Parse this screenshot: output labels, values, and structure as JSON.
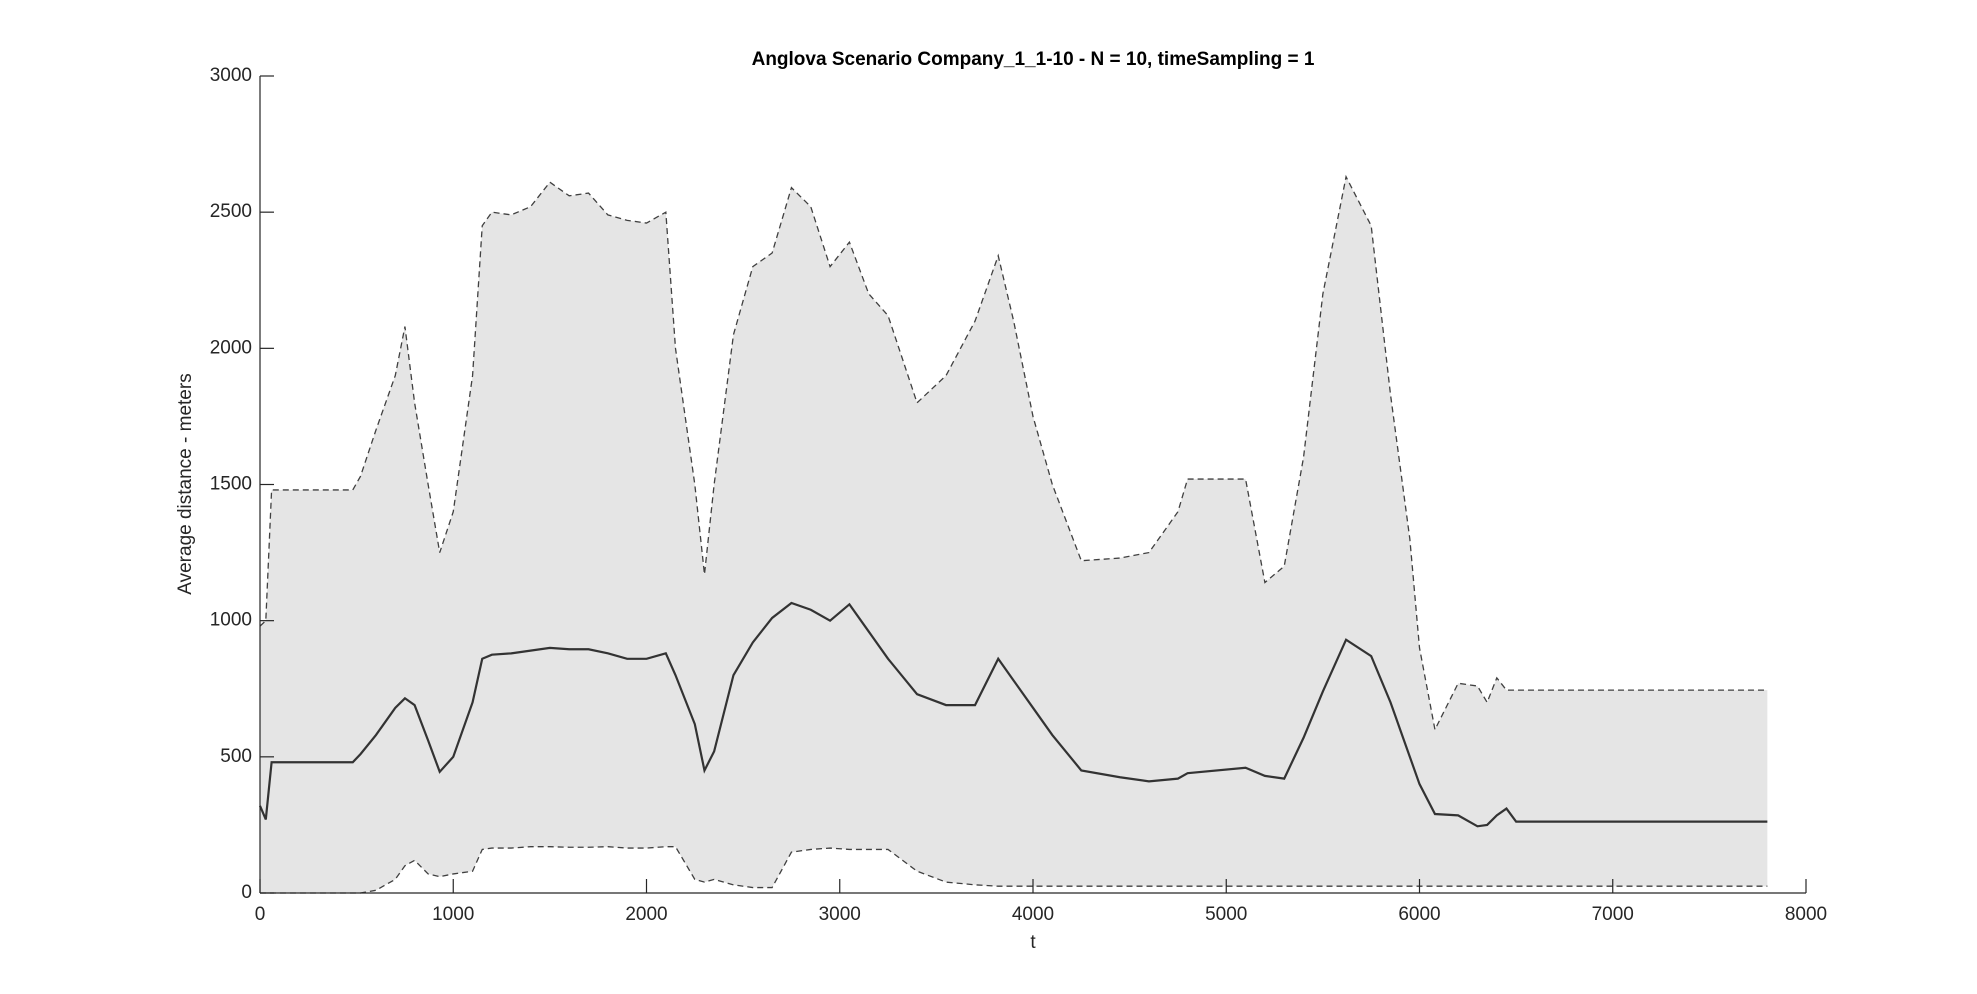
{
  "chart_data": {
    "type": "line",
    "title": "Anglova Scenario Company_1_1-10 - N = 10, timeSampling = 1",
    "x_label": "t",
    "y_label": "Average distance - meters",
    "x": [
      0,
      30,
      60,
      480,
      520,
      600,
      700,
      750,
      800,
      870,
      930,
      1000,
      1100,
      1150,
      1200,
      1300,
      1400,
      1500,
      1600,
      1700,
      1800,
      1900,
      2000,
      2100,
      2150,
      2250,
      2300,
      2350,
      2450,
      2550,
      2650,
      2750,
      2850,
      2950,
      3050,
      3150,
      3250,
      3400,
      3550,
      3700,
      3820,
      3900,
      4000,
      4100,
      4250,
      4450,
      4600,
      4750,
      4800,
      5100,
      5200,
      5300,
      5400,
      5500,
      5620,
      5750,
      5850,
      5950,
      6000,
      6080,
      6200,
      6300,
      6350,
      6400,
      6450,
      6500,
      7800
    ],
    "series": [
      {
        "color": "#404040",
        "dash": true,
        "values": [
          980,
          1000,
          1480,
          1480,
          1530,
          1700,
          1900,
          2080,
          1800,
          1500,
          1250,
          1400,
          1900,
          2450,
          2500,
          2490,
          2520,
          2610,
          2560,
          2570,
          2490,
          2470,
          2460,
          2500,
          2000,
          1500,
          1170,
          1500,
          2050,
          2300,
          2350,
          2590,
          2520,
          2300,
          2390,
          2200,
          2120,
          1800,
          1900,
          2100,
          2340,
          2100,
          1750,
          1500,
          1220,
          1230,
          1250,
          1400,
          1520,
          1520,
          1140,
          1200,
          1600,
          2200,
          2630,
          2450,
          1830,
          1300,
          900,
          600,
          770,
          760,
          700,
          790,
          745,
          745,
          745
        ]
      },
      {
        "color": "#333333",
        "dash": false,
        "values": [
          320,
          270,
          480,
          480,
          510,
          580,
          680,
          715,
          690,
          560,
          445,
          500,
          700,
          860,
          875,
          880,
          890,
          900,
          895,
          895,
          880,
          860,
          860,
          880,
          800,
          620,
          450,
          520,
          800,
          920,
          1010,
          1065,
          1040,
          1000,
          1060,
          960,
          860,
          730,
          690,
          690,
          860,
          780,
          680,
          580,
          450,
          425,
          410,
          420,
          440,
          460,
          430,
          420,
          570,
          740,
          930,
          870,
          700,
          500,
          400,
          290,
          285,
          245,
          250,
          285,
          310,
          262,
          262
        ]
      },
      {
        "color": "#404040",
        "dash": true,
        "values": [
          0,
          0,
          0,
          0,
          0,
          10,
          50,
          100,
          120,
          70,
          60,
          70,
          80,
          160,
          165,
          165,
          170,
          170,
          168,
          168,
          170,
          165,
          165,
          170,
          170,
          50,
          40,
          50,
          30,
          20,
          20,
          150,
          160,
          165,
          160,
          160,
          160,
          80,
          40,
          30,
          25,
          25,
          25,
          25,
          25,
          25,
          25,
          25,
          25,
          25,
          25,
          25,
          25,
          25,
          25,
          25,
          25,
          25,
          25,
          25,
          25,
          25,
          25,
          25,
          25,
          25,
          25
        ]
      }
    ],
    "band_color": "#e5e5e5",
    "xlim": [
      0,
      8000
    ],
    "xticks": [
      0,
      1000,
      2000,
      3000,
      4000,
      5000,
      6000,
      7000,
      8000
    ],
    "ylim": [
      0,
      3000
    ],
    "yticks": [
      0,
      500,
      1000,
      1500,
      2000,
      2500,
      3000
    ],
    "grid": false
  }
}
